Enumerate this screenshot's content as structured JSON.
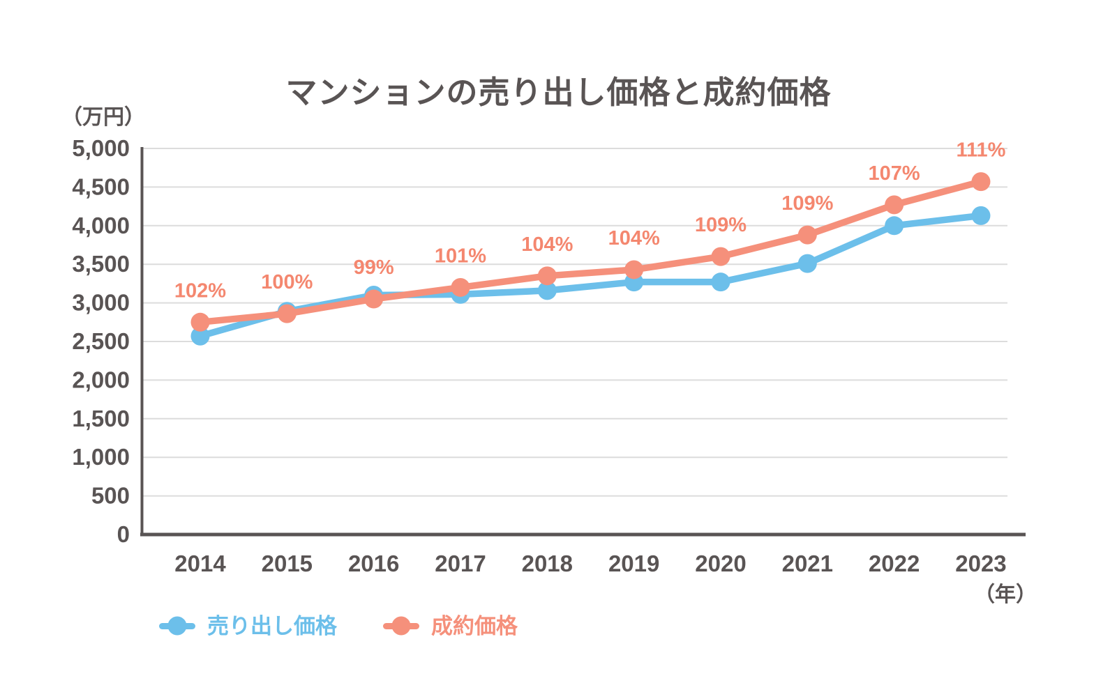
{
  "chart_data": {
    "type": "line",
    "title": "マンションの売り出し価格と成約価格",
    "y_unit": "（万円）",
    "x_unit": "（年）",
    "ylim": [
      0,
      5000
    ],
    "ytick_step": 500,
    "ytick_labels": [
      "0",
      "500",
      "1,000",
      "1,500",
      "2,000",
      "2,500",
      "3,000",
      "3,500",
      "4,000",
      "4,500",
      "5,000"
    ],
    "x": [
      "2014",
      "2015",
      "2016",
      "2017",
      "2018",
      "2019",
      "2020",
      "2021",
      "2022",
      "2023"
    ],
    "series": [
      {
        "name": "売り出し価格",
        "color": "#6CBFEA",
        "values": [
          2570,
          2890,
          3100,
          3110,
          3160,
          3270,
          3270,
          3510,
          4000,
          4130
        ]
      },
      {
        "name": "成約価格",
        "color": "#F5907B",
        "values": [
          2750,
          2860,
          3050,
          3200,
          3350,
          3430,
          3600,
          3880,
          4270,
          4570
        ]
      }
    ],
    "point_labels": {
      "on_series": "成約価格",
      "color": "#F4876F",
      "values": [
        "102%",
        "100%",
        "99%",
        "101%",
        "104%",
        "104%",
        "109%",
        "109%",
        "107%",
        "111%"
      ]
    },
    "colors": {
      "axis": "#595454",
      "grid": "#DCDCDC"
    },
    "grid": true,
    "legend_position": "bottom-left"
  }
}
